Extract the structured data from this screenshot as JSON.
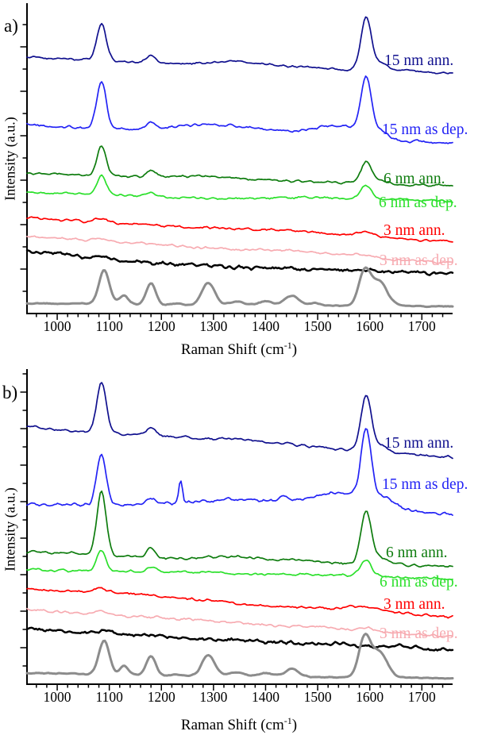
{
  "figure": {
    "panel_a_letter": "a)",
    "panel_b_letter": "b)",
    "ylabel": "Intensity (a.u.)",
    "xlabel_pre": "Raman Shift (cm",
    "xlabel_sup": "-1",
    "xlabel_post": ")"
  },
  "chart_data": [
    {
      "type": "line",
      "panel": "a",
      "title": "",
      "xlabel": "Raman Shift (cm⁻¹)",
      "ylabel": "Intensity (a.u.)",
      "x_range": [
        942,
        1759
      ],
      "x_ticks": [
        1000,
        1100,
        1200,
        1300,
        1400,
        1500,
        1600,
        1700
      ],
      "x_minor_step": 20,
      "y_units": "arbitrary (unlabeled axis, stacked offset spectra)",
      "peak_format": "[center_cm-1, height_au, sigma_cm-1]",
      "series": [
        {
          "name": "15nm-annealed",
          "label": "15 nm ann.",
          "color": "#10108E",
          "stroke_width": 1.7,
          "baseline": [
            323,
            303
          ],
          "broad": [
            [
              1360,
              4,
              90
            ]
          ],
          "peaks": [
            [
              1085,
              46,
              9
            ],
            [
              1180,
              9,
              8
            ],
            [
              1340,
              2,
              30
            ],
            [
              1593,
              66,
              10
            ],
            [
              1622,
              9,
              13
            ]
          ],
          "noise": 1.2,
          "label_pos": [
            484,
            67
          ]
        },
        {
          "name": "15nm-as-deposited",
          "label": "15 nm as dep.",
          "color": "#2323F5",
          "stroke_width": 1.7,
          "baseline": [
            238,
            212
          ],
          "broad": [
            [
              1310,
              12,
              75
            ],
            [
              1545,
              16,
              55
            ]
          ],
          "peaks": [
            [
              1085,
              58,
              9
            ],
            [
              1180,
              10,
              8
            ],
            [
              1593,
              70,
              10
            ],
            [
              1625,
              8,
              14
            ]
          ],
          "noise": 1.5,
          "label_pos": [
            481,
            154
          ]
        },
        {
          "name": "6nm-annealed",
          "label": "6 nm ann.",
          "color": "#0E7C0E",
          "stroke_width": 1.7,
          "baseline": [
            177,
            160
          ],
          "broad": [
            [
              1350,
              2,
              80
            ]
          ],
          "peaks": [
            [
              1085,
              37,
              9
            ],
            [
              1180,
              8,
              8
            ],
            [
              1593,
              27,
              10
            ],
            [
              1620,
              5,
              13
            ]
          ],
          "noise": 1.2,
          "label_pos": [
            483,
            216
          ]
        },
        {
          "name": "6nm-as-deposited",
          "label": "6 nm as dep.",
          "color": "#2BE02B",
          "stroke_width": 1.7,
          "baseline": [
            152,
            143
          ],
          "broad": [],
          "peaks": [
            [
              1085,
              24,
              8.5
            ],
            [
              1180,
              5,
              8
            ],
            [
              1593,
              17,
              10
            ]
          ],
          "noise": 1.2,
          "label_pos": [
            477,
            246
          ]
        },
        {
          "name": "3nm-annealed",
          "label": "3 nm ann.",
          "color": "#FF0000",
          "stroke_width": 1.7,
          "baseline": [
            121,
            90
          ],
          "broad": [],
          "peaks": [
            [
              1085,
              5,
              12
            ],
            [
              1180,
              2,
              10
            ],
            [
              1590,
              5,
              16
            ]
          ],
          "noise": 1.2,
          "label_pos": [
            483,
            281
          ]
        },
        {
          "name": "3nm-as-deposited",
          "label": "3 nm as dep.",
          "color": "#F7ABB1",
          "stroke_width": 1.7,
          "baseline": [
            97,
            65
          ],
          "broad": [],
          "peaks": [
            [
              1085,
              4,
              12
            ],
            [
              1590,
              3,
              16
            ]
          ],
          "noise": 1.2,
          "label_pos": [
            478,
            319
          ]
        },
        {
          "name": "black-curve-unlabeled",
          "label": "",
          "color": "#000000",
          "stroke_width": 2.5,
          "baseline": [
            77,
            46
          ],
          "broad": [],
          "peaks": [
            [
              1090,
              2,
              15
            ]
          ],
          "noise": 2.0,
          "label_pos": null
        },
        {
          "name": "gray-reference-unlabeled",
          "label": "",
          "color": "#8C8C8C",
          "stroke_width": 3,
          "baseline": [
            13,
            10
          ],
          "broad": [],
          "peaks": [
            [
              1090,
              42,
              10
            ],
            [
              1128,
              11,
              8
            ],
            [
              1180,
              27,
              9
            ],
            [
              1230,
              2,
              10
            ],
            [
              1290,
              28,
              12
            ],
            [
              1345,
              4,
              14
            ],
            [
              1400,
              5,
              12
            ],
            [
              1450,
              12,
              13
            ],
            [
              1496,
              3,
              10
            ],
            [
              1590,
              42,
              11
            ],
            [
              1618,
              30,
              15
            ]
          ],
          "noise": 0.55,
          "label_pos": null
        }
      ]
    },
    {
      "type": "line",
      "panel": "b",
      "title": "",
      "xlabel": "Raman Shift (cm⁻¹)",
      "ylabel": "Intensity (a.u.)",
      "x_range": [
        942,
        1759
      ],
      "x_ticks": [
        1000,
        1100,
        1200,
        1300,
        1400,
        1500,
        1600,
        1700
      ],
      "x_minor_step": 20,
      "y_units": "arbitrary (unlabeled axis, stacked offset spectra)",
      "peak_format": "[center_cm-1, height_au, sigma_cm-1]",
      "series": [
        {
          "name": "15nm-annealed",
          "label": "15 nm ann.",
          "color": "#10108E",
          "stroke_width": 1.7,
          "baseline": [
            325,
            285
          ],
          "broad": [
            [
              1360,
              4,
              90
            ]
          ],
          "peaks": [
            [
              1085,
              62,
              9
            ],
            [
              1180,
              10,
              8
            ],
            [
              1593,
              70,
              10
            ],
            [
              1622,
              9,
              13
            ]
          ],
          "noise": 1.3,
          "label_pos": [
            484,
            94
          ]
        },
        {
          "name": "15nm-as-deposited",
          "label": "15 nm as dep.",
          "color": "#2323F5",
          "stroke_width": 1.7,
          "baseline": [
            226,
            216
          ],
          "broad": [
            [
              1340,
              12,
              110
            ],
            [
              1555,
              20,
              65
            ]
          ],
          "peaks": [
            [
              1085,
              64,
              9
            ],
            [
              1180,
              8,
              8
            ],
            [
              1237,
              28,
              3.5
            ],
            [
              1432,
              6,
              6
            ],
            [
              1593,
              88,
              9.5
            ],
            [
              1625,
              8,
              14
            ]
          ],
          "noise": 1.7,
          "label_pos": [
            481,
            146
          ]
        },
        {
          "name": "6nm-annealed",
          "label": "6 nm ann.",
          "color": "#0E7C0E",
          "stroke_width": 1.7,
          "baseline": [
            166,
            150
          ],
          "broad": [
            [
              1350,
              2,
              80
            ]
          ],
          "peaks": [
            [
              1085,
              80,
              9
            ],
            [
              1180,
              13,
              8
            ],
            [
              1593,
              66,
              10
            ],
            [
              1622,
              8,
              13
            ]
          ],
          "noise": 1.4,
          "label_pos": [
            486,
            232
          ]
        },
        {
          "name": "6nm-as-deposited",
          "label": "6 nm as dep.",
          "color": "#2BE02B",
          "stroke_width": 1.7,
          "baseline": [
            146,
            134
          ],
          "broad": [],
          "peaks": [
            [
              1085,
              26,
              8.5
            ],
            [
              1180,
              5,
              8
            ],
            [
              1593,
              20,
              10
            ]
          ],
          "noise": 1.3,
          "label_pos": [
            478,
            269
          ]
        },
        {
          "name": "3nm-annealed",
          "label": "3 nm ann.",
          "color": "#FF0000",
          "stroke_width": 1.7,
          "baseline": [
            120,
            84
          ],
          "broad": [],
          "peaks": [
            [
              1085,
              5,
              12
            ],
            [
              1570,
              4,
              18
            ],
            [
              1600,
              3,
              10
            ]
          ],
          "noise": 1.4,
          "label_pos": [
            483,
            297
          ]
        },
        {
          "name": "3nm-as-deposited",
          "label": "3 nm as dep.",
          "color": "#F7ABB1",
          "stroke_width": 1.7,
          "baseline": [
            94,
            62
          ],
          "broad": [],
          "peaks": [
            [
              1085,
              4,
              12
            ],
            [
              1590,
              3,
              16
            ]
          ],
          "noise": 1.4,
          "label_pos": [
            478,
            334
          ]
        },
        {
          "name": "black-curve-unlabeled",
          "label": "",
          "color": "#000000",
          "stroke_width": 2.5,
          "baseline": [
            69,
            44
          ],
          "broad": [],
          "peaks": [
            [
              1090,
              2,
              15
            ]
          ],
          "noise": 2.0,
          "label_pos": null
        },
        {
          "name": "gray-reference-unlabeled",
          "label": "",
          "color": "#8C8C8C",
          "stroke_width": 3,
          "baseline": [
            14,
            7
          ],
          "broad": [],
          "peaks": [
            [
              1090,
              43,
              10
            ],
            [
              1128,
              11,
              8
            ],
            [
              1180,
              24,
              9
            ],
            [
              1230,
              2,
              10
            ],
            [
              1290,
              26,
              12
            ],
            [
              1345,
              4,
              14
            ],
            [
              1400,
              4,
              12
            ],
            [
              1450,
              10,
              13
            ],
            [
              1590,
              48,
              11
            ],
            [
              1618,
              31,
              15
            ]
          ],
          "noise": 0.55,
          "label_pos": null
        }
      ]
    }
  ]
}
